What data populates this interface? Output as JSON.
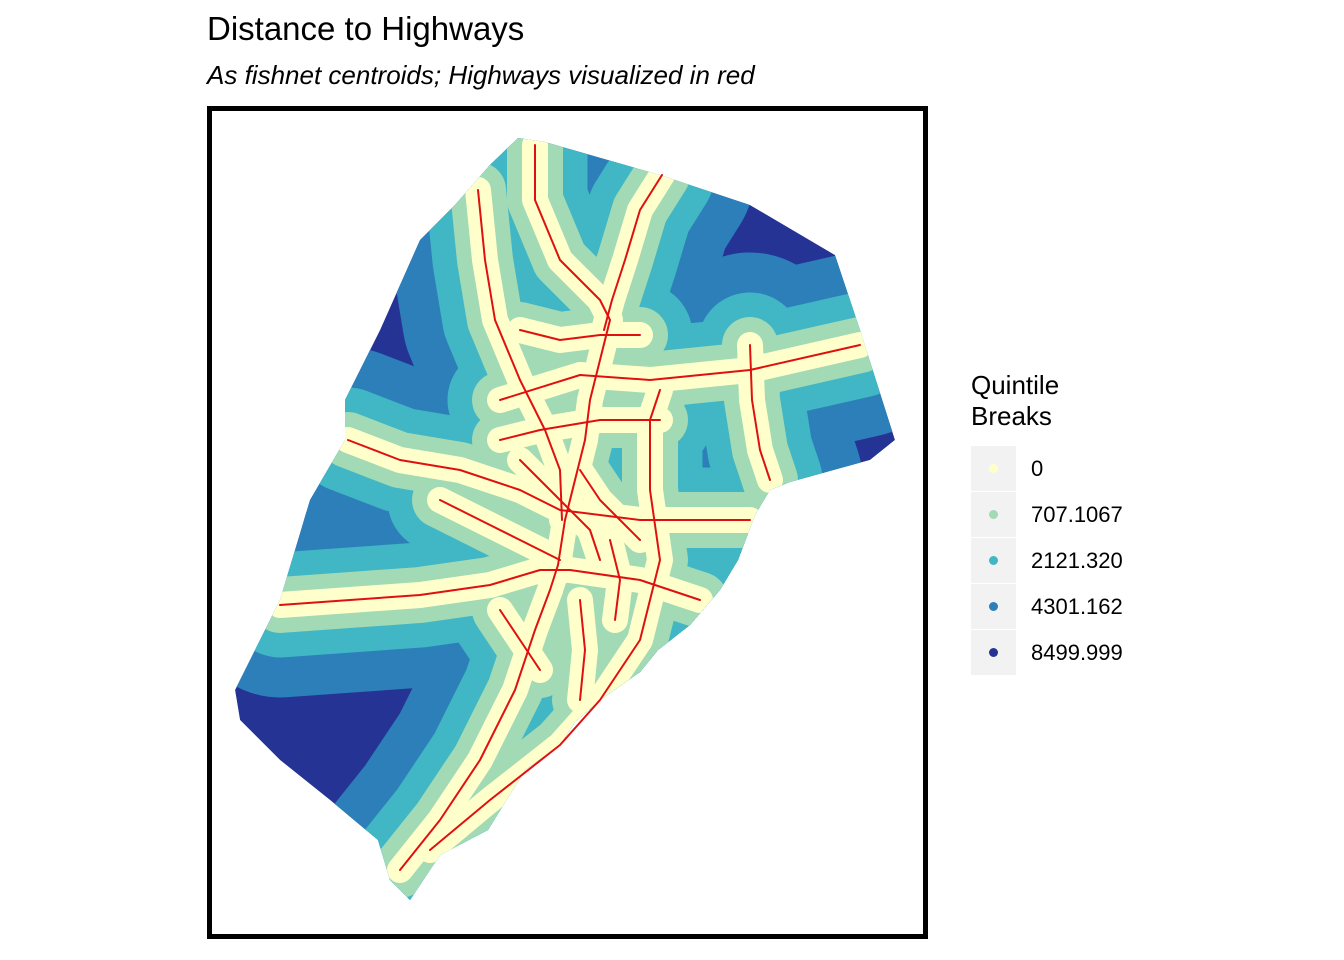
{
  "title": "Distance to Highways",
  "subtitle": "As fishnet centroids; Highways visualized in red",
  "legend": {
    "title": "Quintile\nBreaks",
    "items": [
      {
        "label": "0",
        "color": "#ffffcc"
      },
      {
        "label": "707.1067",
        "color": "#a1dab4"
      },
      {
        "label": "2121.320",
        "color": "#41b6c4"
      },
      {
        "label": "4301.162",
        "color": "#2c7fb8"
      },
      {
        "label": "8499.999",
        "color": "#253494"
      }
    ]
  },
  "highway_color": "#e01010"
}
